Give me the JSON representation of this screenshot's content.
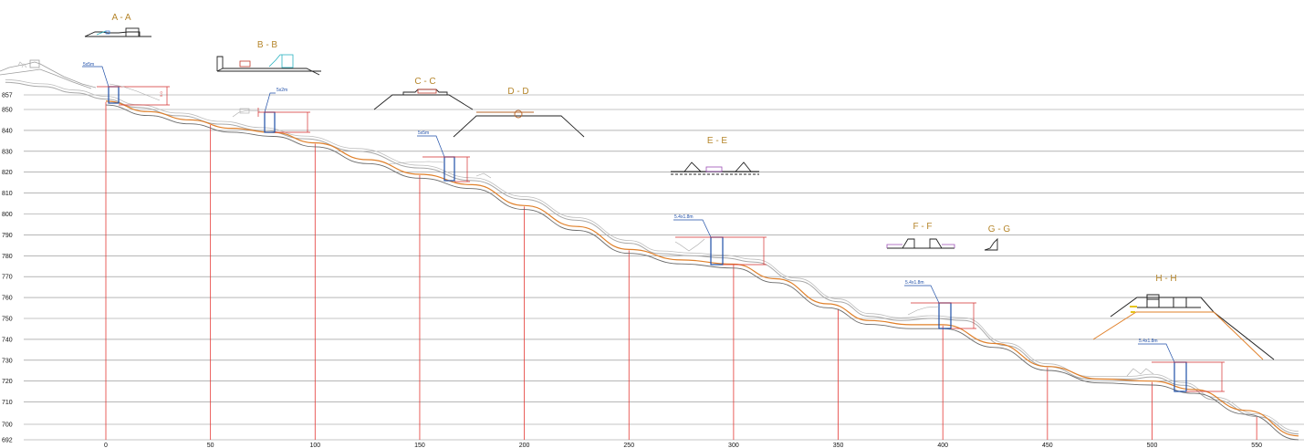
{
  "colors": {
    "grid": "#8a8a8a",
    "verticals": "#e53935",
    "terrain": "#a9a9a9",
    "road_a": "#e0802a",
    "road_b": "#6b6b6b",
    "culvert": "#1f4fa8",
    "dimension": "#d32f2f",
    "section_title": "#b5852a"
  },
  "axis": {
    "y_ticks": [
      {
        "label": "857",
        "value": 857
      },
      {
        "label": "850",
        "value": 850
      },
      {
        "label": "840",
        "value": 840
      },
      {
        "label": "830",
        "value": 830
      },
      {
        "label": "820",
        "value": 820
      },
      {
        "label": "810",
        "value": 810
      },
      {
        "label": "800",
        "value": 800
      },
      {
        "label": "790",
        "value": 790
      },
      {
        "label": "780",
        "value": 780
      },
      {
        "label": "770",
        "value": 770
      },
      {
        "label": "760",
        "value": 760
      },
      {
        "label": "750",
        "value": 750
      },
      {
        "label": "740",
        "value": 740
      },
      {
        "label": "730",
        "value": 730
      },
      {
        "label": "720",
        "value": 720
      },
      {
        "label": "710",
        "value": 710
      },
      {
        "label": "700",
        "value": 700
      },
      {
        "label": "692",
        "value": 692
      }
    ],
    "x_ticks": [
      {
        "label": "0",
        "value": 0
      },
      {
        "label": "50",
        "value": 50
      },
      {
        "label": "100",
        "value": 100
      },
      {
        "label": "150",
        "value": 150
      },
      {
        "label": "200",
        "value": 200
      },
      {
        "label": "250",
        "value": 250
      },
      {
        "label": "300",
        "value": 300
      },
      {
        "label": "350",
        "value": 350
      },
      {
        "label": "400",
        "value": 400
      },
      {
        "label": "450",
        "value": 450
      },
      {
        "label": "500",
        "value": 500
      },
      {
        "label": "550",
        "value": 550
      }
    ]
  },
  "sections": {
    "aa": "A - A",
    "bb": "B - B",
    "cc": "C - C",
    "dd": "D - D",
    "ee": "E - E",
    "ff": "F - F",
    "gg": "G - G",
    "hh": "H - H"
  },
  "culverts": [
    {
      "label": "5x5m"
    },
    {
      "label": "5x2m"
    },
    {
      "label": "5x5m"
    },
    {
      "label": "5.4x1.8m"
    },
    {
      "label": "5.4x1.8m"
    },
    {
      "label": "5.4x1.8m"
    }
  ],
  "profile": {
    "terrain": [
      [
        -48,
        863
      ],
      [
        -30,
        861
      ],
      [
        -15,
        858
      ],
      [
        0,
        855
      ],
      [
        15,
        851
      ],
      [
        35,
        847
      ],
      [
        55,
        843
      ],
      [
        75,
        840
      ],
      [
        95,
        836
      ],
      [
        120,
        830
      ],
      [
        150,
        822
      ],
      [
        175,
        816
      ],
      [
        200,
        807
      ],
      [
        225,
        797
      ],
      [
        250,
        786
      ],
      [
        265,
        781
      ],
      [
        280,
        780
      ],
      [
        295,
        779
      ],
      [
        310,
        777
      ],
      [
        330,
        768
      ],
      [
        350,
        758
      ],
      [
        365,
        751
      ],
      [
        380,
        749
      ],
      [
        395,
        750
      ],
      [
        410,
        749
      ],
      [
        430,
        737
      ],
      [
        450,
        727
      ],
      [
        470,
        721
      ],
      [
        490,
        721
      ],
      [
        500,
        722
      ],
      [
        515,
        718
      ],
      [
        530,
        711
      ],
      [
        550,
        703
      ],
      [
        570,
        695
      ]
    ],
    "road_top": [
      [
        0,
        854
      ],
      [
        20,
        849
      ],
      [
        40,
        845
      ],
      [
        60,
        841
      ],
      [
        80,
        839
      ],
      [
        100,
        834
      ],
      [
        125,
        826
      ],
      [
        150,
        819
      ],
      [
        175,
        814
      ],
      [
        200,
        804
      ],
      [
        225,
        794
      ],
      [
        250,
        783
      ],
      [
        275,
        778
      ],
      [
        300,
        776
      ],
      [
        320,
        769
      ],
      [
        345,
        757
      ],
      [
        365,
        749
      ],
      [
        385,
        747
      ],
      [
        400,
        747
      ],
      [
        425,
        738
      ],
      [
        450,
        727
      ],
      [
        475,
        721
      ],
      [
        500,
        720
      ],
      [
        520,
        716
      ],
      [
        545,
        706
      ],
      [
        570,
        694
      ]
    ],
    "road_bottom": [
      [
        0,
        853
      ],
      [
        20,
        848
      ],
      [
        40,
        844
      ],
      [
        60,
        840
      ],
      [
        80,
        838
      ],
      [
        100,
        833
      ],
      [
        125,
        825
      ],
      [
        150,
        818
      ],
      [
        175,
        813
      ],
      [
        200,
        803
      ],
      [
        225,
        793
      ],
      [
        250,
        782
      ],
      [
        275,
        777
      ],
      [
        300,
        775
      ],
      [
        320,
        768
      ],
      [
        345,
        756
      ],
      [
        365,
        748
      ],
      [
        385,
        746
      ],
      [
        400,
        746
      ],
      [
        425,
        737
      ],
      [
        450,
        726
      ],
      [
        475,
        720
      ],
      [
        500,
        719
      ],
      [
        520,
        715
      ],
      [
        545,
        705
      ],
      [
        570,
        693
      ]
    ]
  }
}
